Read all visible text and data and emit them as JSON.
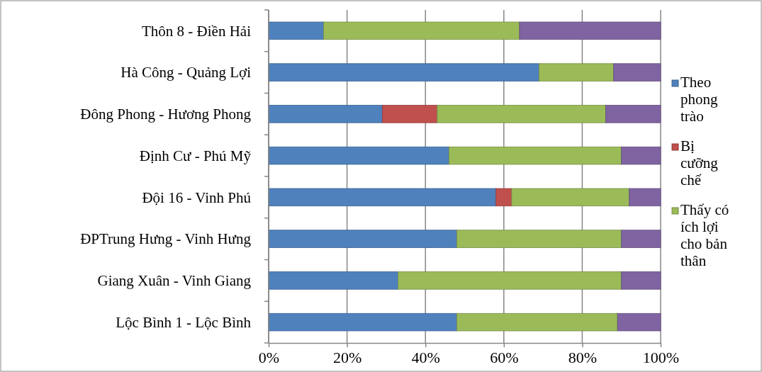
{
  "chart_data": {
    "type": "bar",
    "orientation": "horizontal",
    "stacked": true,
    "categories": [
      "Thôn 8 - Điền Hải",
      "Hà Công - Quảng Lợi",
      "Đông Phong - Hương Phong",
      "Định Cư - Phú Mỹ",
      "Đội 16 - Vinh Phú",
      "ĐPTrung Hưng - Vinh Hưng",
      "Giang Xuân - Vinh Giang",
      "Lộc Bình 1 - Lộc Bình"
    ],
    "series": [
      {
        "name": "Theo phong trào",
        "color": "#4f81bd",
        "values": [
          14,
          69,
          29,
          46,
          58,
          48,
          33,
          48
        ]
      },
      {
        "name": "Bị cưỡng chế",
        "color": "#c0504d",
        "values": [
          0,
          0,
          14,
          0,
          4,
          0,
          0,
          0
        ]
      },
      {
        "name": "Thấy có ích lợi cho bản thân",
        "color": "#9bbb59",
        "values": [
          50,
          19,
          43,
          44,
          30,
          42,
          57,
          41
        ]
      },
      {
        "color": "#8064a2",
        "values": [
          36,
          12,
          14,
          10,
          8,
          10,
          10,
          11
        ]
      }
    ],
    "xlim": [
      0,
      100
    ],
    "xticks": [
      {
        "value": 0,
        "label": "0%"
      },
      {
        "value": 20,
        "label": "20%"
      },
      {
        "value": 40,
        "label": "40%"
      },
      {
        "value": 60,
        "label": "60%"
      },
      {
        "value": 80,
        "label": "80%"
      },
      {
        "value": 100,
        "label": "100%"
      }
    ],
    "grid": "x",
    "legend": "right"
  }
}
